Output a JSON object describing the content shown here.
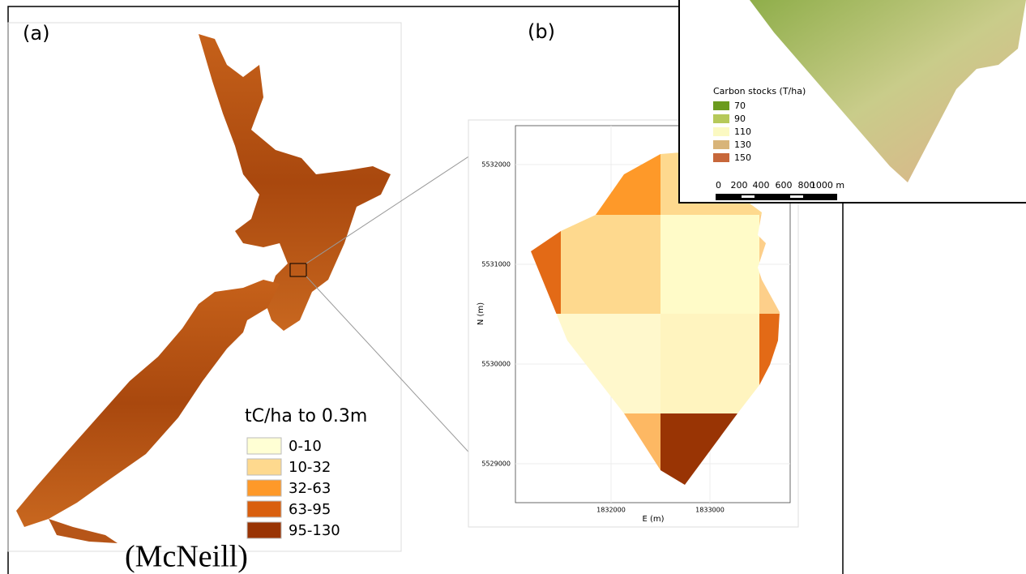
{
  "panel_a": {
    "label": "(a)",
    "legend": {
      "title": "tC/ha to 0.3m",
      "items": [
        {
          "label": "0-10",
          "color": "#ffffd4"
        },
        {
          "label": "10-32",
          "color": "#fed98e"
        },
        {
          "label": "32-63",
          "color": "#fe9929"
        },
        {
          "label": "63-95",
          "color": "#d95f0e"
        },
        {
          "label": "95-130",
          "color": "#993404"
        }
      ]
    },
    "credit": "(McNeill)"
  },
  "panel_b": {
    "label": "(b)",
    "y_axis_label": "N (m)",
    "x_axis_label": "E (m)",
    "yticks": [
      "5532000",
      "5531000",
      "5530000",
      "5529000"
    ],
    "xticks": [
      "1832000",
      "1833000"
    ]
  },
  "inset": {
    "legend": {
      "title": "Carbon stocks (T/ha)",
      "items": [
        {
          "label": "70",
          "color": "#6b9b1e"
        },
        {
          "label": "90",
          "color": "#b6c95a"
        },
        {
          "label": "110",
          "color": "#fbf9c2"
        },
        {
          "label": "130",
          "color": "#d8b479"
        },
        {
          "label": "150",
          "color": "#c7673a"
        }
      ]
    },
    "scale_labels": [
      "0",
      "200",
      "400",
      "600",
      "800",
      "1000 m"
    ]
  }
}
